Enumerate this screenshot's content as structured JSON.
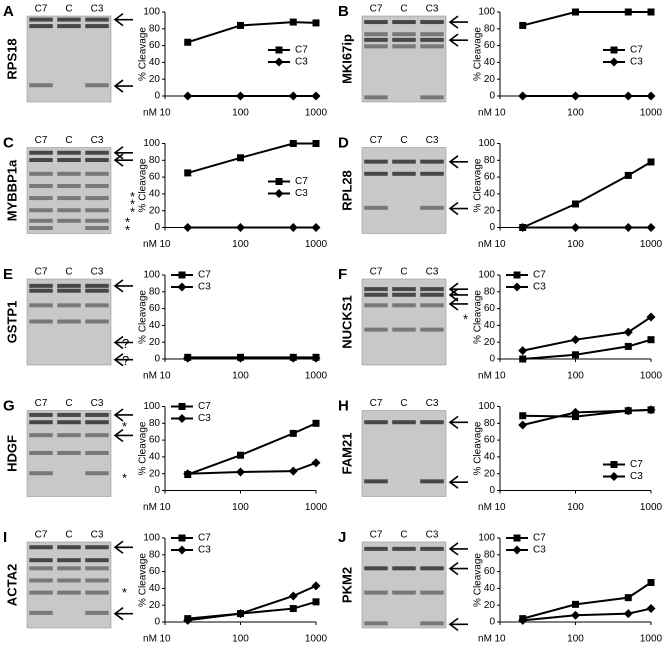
{
  "chart_data": [
    {
      "type": "line",
      "panel": "A",
      "gel": {
        "label": "RPS18",
        "lanes": [
          "C7",
          "C",
          "C3"
        ],
        "notes": []
      },
      "x": [
        20,
        100,
        500,
        1000
      ],
      "xlim": [
        10,
        1000
      ],
      "xticks": [
        10,
        100,
        1000
      ],
      "xlabel": "nM",
      "log_x": true,
      "ylim": [
        0,
        100
      ],
      "yticks": [
        0,
        20,
        40,
        60,
        80,
        100
      ],
      "ylabel": "% Cleavage",
      "legend": "right",
      "series": [
        {
          "name": "C7",
          "color": "#000000",
          "marker": "square",
          "values": [
            64,
            84,
            88,
            87
          ]
        },
        {
          "name": "C3",
          "color": "#000000",
          "marker": "diamond",
          "values": [
            0,
            0,
            0,
            0
          ]
        }
      ]
    },
    {
      "type": "line",
      "panel": "B",
      "gel": {
        "label": "MKI67ip",
        "lanes": [
          "C7",
          "C",
          "C3"
        ],
        "notes": []
      },
      "x": [
        20,
        100,
        500,
        1000
      ],
      "xlim": [
        10,
        1000
      ],
      "xticks": [
        10,
        100,
        1000
      ],
      "xlabel": "nM",
      "log_x": true,
      "ylim": [
        0,
        100
      ],
      "yticks": [
        0,
        20,
        40,
        60,
        80,
        100
      ],
      "ylabel": "% Cleavage",
      "legend": "right",
      "series": [
        {
          "name": "C7",
          "color": "#000000",
          "marker": "square",
          "values": [
            84,
            100,
            100,
            100
          ]
        },
        {
          "name": "C3",
          "color": "#000000",
          "marker": "diamond",
          "values": [
            0,
            0,
            0,
            0
          ]
        }
      ]
    },
    {
      "type": "line",
      "panel": "C",
      "gel": {
        "label": "MYBBP1a",
        "lanes": [
          "C7",
          "C",
          "C3"
        ],
        "notes": [
          "*",
          "*",
          "*",
          "*",
          "*"
        ]
      },
      "x": [
        20,
        100,
        500,
        1000
      ],
      "xlim": [
        10,
        1000
      ],
      "xticks": [
        10,
        100,
        1000
      ],
      "xlabel": "nM",
      "log_x": true,
      "ylim": [
        0,
        100
      ],
      "yticks": [
        0,
        20,
        40,
        60,
        80,
        100
      ],
      "ylabel": "% Cleavage",
      "legend": "right",
      "series": [
        {
          "name": "C7",
          "color": "#000000",
          "marker": "square",
          "values": [
            65,
            83,
            100,
            100
          ]
        },
        {
          "name": "C3",
          "color": "#000000",
          "marker": "diamond",
          "values": [
            0,
            0,
            0,
            0
          ]
        }
      ]
    },
    {
      "type": "line",
      "panel": "D",
      "gel": {
        "label": "RPL28",
        "lanes": [
          "C7",
          "C",
          "C3"
        ],
        "notes": []
      },
      "x": [
        20,
        100,
        500,
        1000
      ],
      "xlim": [
        10,
        1000
      ],
      "xticks": [
        10,
        100,
        1000
      ],
      "xlabel": "nM",
      "log_x": true,
      "ylim": [
        0,
        100
      ],
      "yticks": [
        0,
        20,
        40,
        60,
        80,
        100
      ],
      "ylabel": "% Cleavage",
      "series": [
        {
          "color": "#000000",
          "marker": "square",
          "values": [
            0,
            28,
            62,
            78
          ]
        },
        {
          "color": "#000000",
          "marker": "diamond",
          "values": [
            0,
            0,
            0,
            0
          ]
        }
      ]
    },
    {
      "type": "line",
      "panel": "E",
      "gel": {
        "label": "GSTP1",
        "lanes": [
          "C7",
          "C",
          "C3"
        ],
        "notes": [
          "?",
          "?"
        ]
      },
      "x": [
        20,
        100,
        500,
        1000
      ],
      "xlim": [
        10,
        1000
      ],
      "xticks": [
        10,
        100,
        1000
      ],
      "xlabel": "nM",
      "log_x": true,
      "ylim": [
        0,
        100
      ],
      "yticks": [
        0,
        20,
        40,
        60,
        80,
        100
      ],
      "ylabel": "% Cleavage",
      "legend": "upper left",
      "series": [
        {
          "name": "C7",
          "color": "#000000",
          "marker": "square",
          "values": [
            2,
            2,
            2,
            2
          ]
        },
        {
          "name": "C3",
          "color": "#000000",
          "marker": "diamond",
          "values": [
            1,
            1,
            1,
            1
          ]
        }
      ]
    },
    {
      "type": "line",
      "panel": "F",
      "gel": {
        "label": "NUCKS1",
        "lanes": [
          "C7",
          "C",
          "C3"
        ],
        "notes": [
          "*"
        ]
      },
      "x": [
        20,
        100,
        500,
        1000
      ],
      "xlim": [
        10,
        1000
      ],
      "xticks": [
        10,
        100,
        1000
      ],
      "xlabel": "nM",
      "log_x": true,
      "ylim": [
        0,
        100
      ],
      "yticks": [
        0,
        20,
        40,
        60,
        80,
        100
      ],
      "ylabel": "% Cleavage",
      "legend": "upper left",
      "series": [
        {
          "name": "C7",
          "color": "#000000",
          "marker": "square",
          "values": [
            0,
            5,
            15,
            23
          ]
        },
        {
          "name": "C3",
          "color": "#000000",
          "marker": "diamond",
          "values": [
            10,
            23,
            32,
            50
          ]
        }
      ]
    },
    {
      "type": "line",
      "panel": "G",
      "gel": {
        "label": "HDGF",
        "lanes": [
          "C7",
          "C",
          "C3"
        ],
        "notes": [
          "*",
          "*"
        ]
      },
      "x": [
        20,
        100,
        500,
        1000
      ],
      "xlim": [
        10,
        1000
      ],
      "xticks": [
        10,
        100,
        1000
      ],
      "xlabel": "nM",
      "log_x": true,
      "ylim": [
        0,
        100
      ],
      "yticks": [
        0,
        20,
        40,
        60,
        80,
        100
      ],
      "ylabel": "% Cleavage",
      "legend": "upper left",
      "series": [
        {
          "name": "C7",
          "color": "#000000",
          "marker": "square",
          "values": [
            19,
            42,
            68,
            80
          ]
        },
        {
          "name": "C3",
          "color": "#000000",
          "marker": "diamond",
          "values": [
            20,
            22,
            23,
            33
          ]
        }
      ]
    },
    {
      "type": "line",
      "panel": "H",
      "gel": {
        "label": "FAM21",
        "lanes": [
          "C7",
          "C",
          "C3"
        ],
        "notes": []
      },
      "x": [
        20,
        100,
        500,
        1000
      ],
      "xlim": [
        10,
        1000
      ],
      "xticks": [
        10,
        100,
        1000
      ],
      "xlabel": "nM",
      "log_x": true,
      "ylim": [
        0,
        100
      ],
      "yticks": [
        0,
        20,
        40,
        60,
        80,
        100
      ],
      "ylabel": "% Cleavage",
      "legend": "lower right",
      "series": [
        {
          "name": "C7",
          "color": "#000000",
          "marker": "square",
          "values": [
            89,
            88,
            95,
            96
          ]
        },
        {
          "name": "C3",
          "color": "#000000",
          "marker": "diamond",
          "values": [
            78,
            93,
            95,
            96
          ]
        }
      ]
    },
    {
      "type": "line",
      "panel": "I",
      "gel": {
        "label": "ACTA2",
        "lanes": [
          "C7",
          "C",
          "C3"
        ],
        "notes": [
          "*"
        ]
      },
      "x": [
        20,
        100,
        500,
        1000
      ],
      "xlim": [
        10,
        1000
      ],
      "xticks": [
        10,
        100,
        1000
      ],
      "xlabel": "nM",
      "log_x": true,
      "ylim": [
        0,
        100
      ],
      "yticks": [
        0,
        20,
        40,
        60,
        80,
        100
      ],
      "ylabel": "% Cleavage",
      "legend": "upper left",
      "series": [
        {
          "name": "C7",
          "color": "#000000",
          "marker": "square",
          "values": [
            4,
            10,
            16,
            24
          ]
        },
        {
          "name": "C3",
          "color": "#000000",
          "marker": "diamond",
          "values": [
            2,
            10,
            31,
            43
          ]
        }
      ]
    },
    {
      "type": "line",
      "panel": "J",
      "gel": {
        "label": "PKM2",
        "lanes": [
          "C7",
          "C",
          "C3"
        ],
        "notes": []
      },
      "x": [
        20,
        100,
        500,
        1000
      ],
      "xlim": [
        10,
        1000
      ],
      "xticks": [
        10,
        100,
        1000
      ],
      "xlabel": "nM",
      "log_x": true,
      "ylim": [
        0,
        100
      ],
      "yticks": [
        0,
        20,
        40,
        60,
        80,
        100
      ],
      "ylabel": "% Cleavage",
      "legend": "upper left",
      "series": [
        {
          "name": "C7",
          "color": "#000000",
          "marker": "square",
          "values": [
            4,
            21,
            29,
            47
          ]
        },
        {
          "name": "C3",
          "color": "#000000",
          "marker": "diamond",
          "values": [
            2,
            8,
            10,
            16
          ]
        }
      ]
    }
  ]
}
